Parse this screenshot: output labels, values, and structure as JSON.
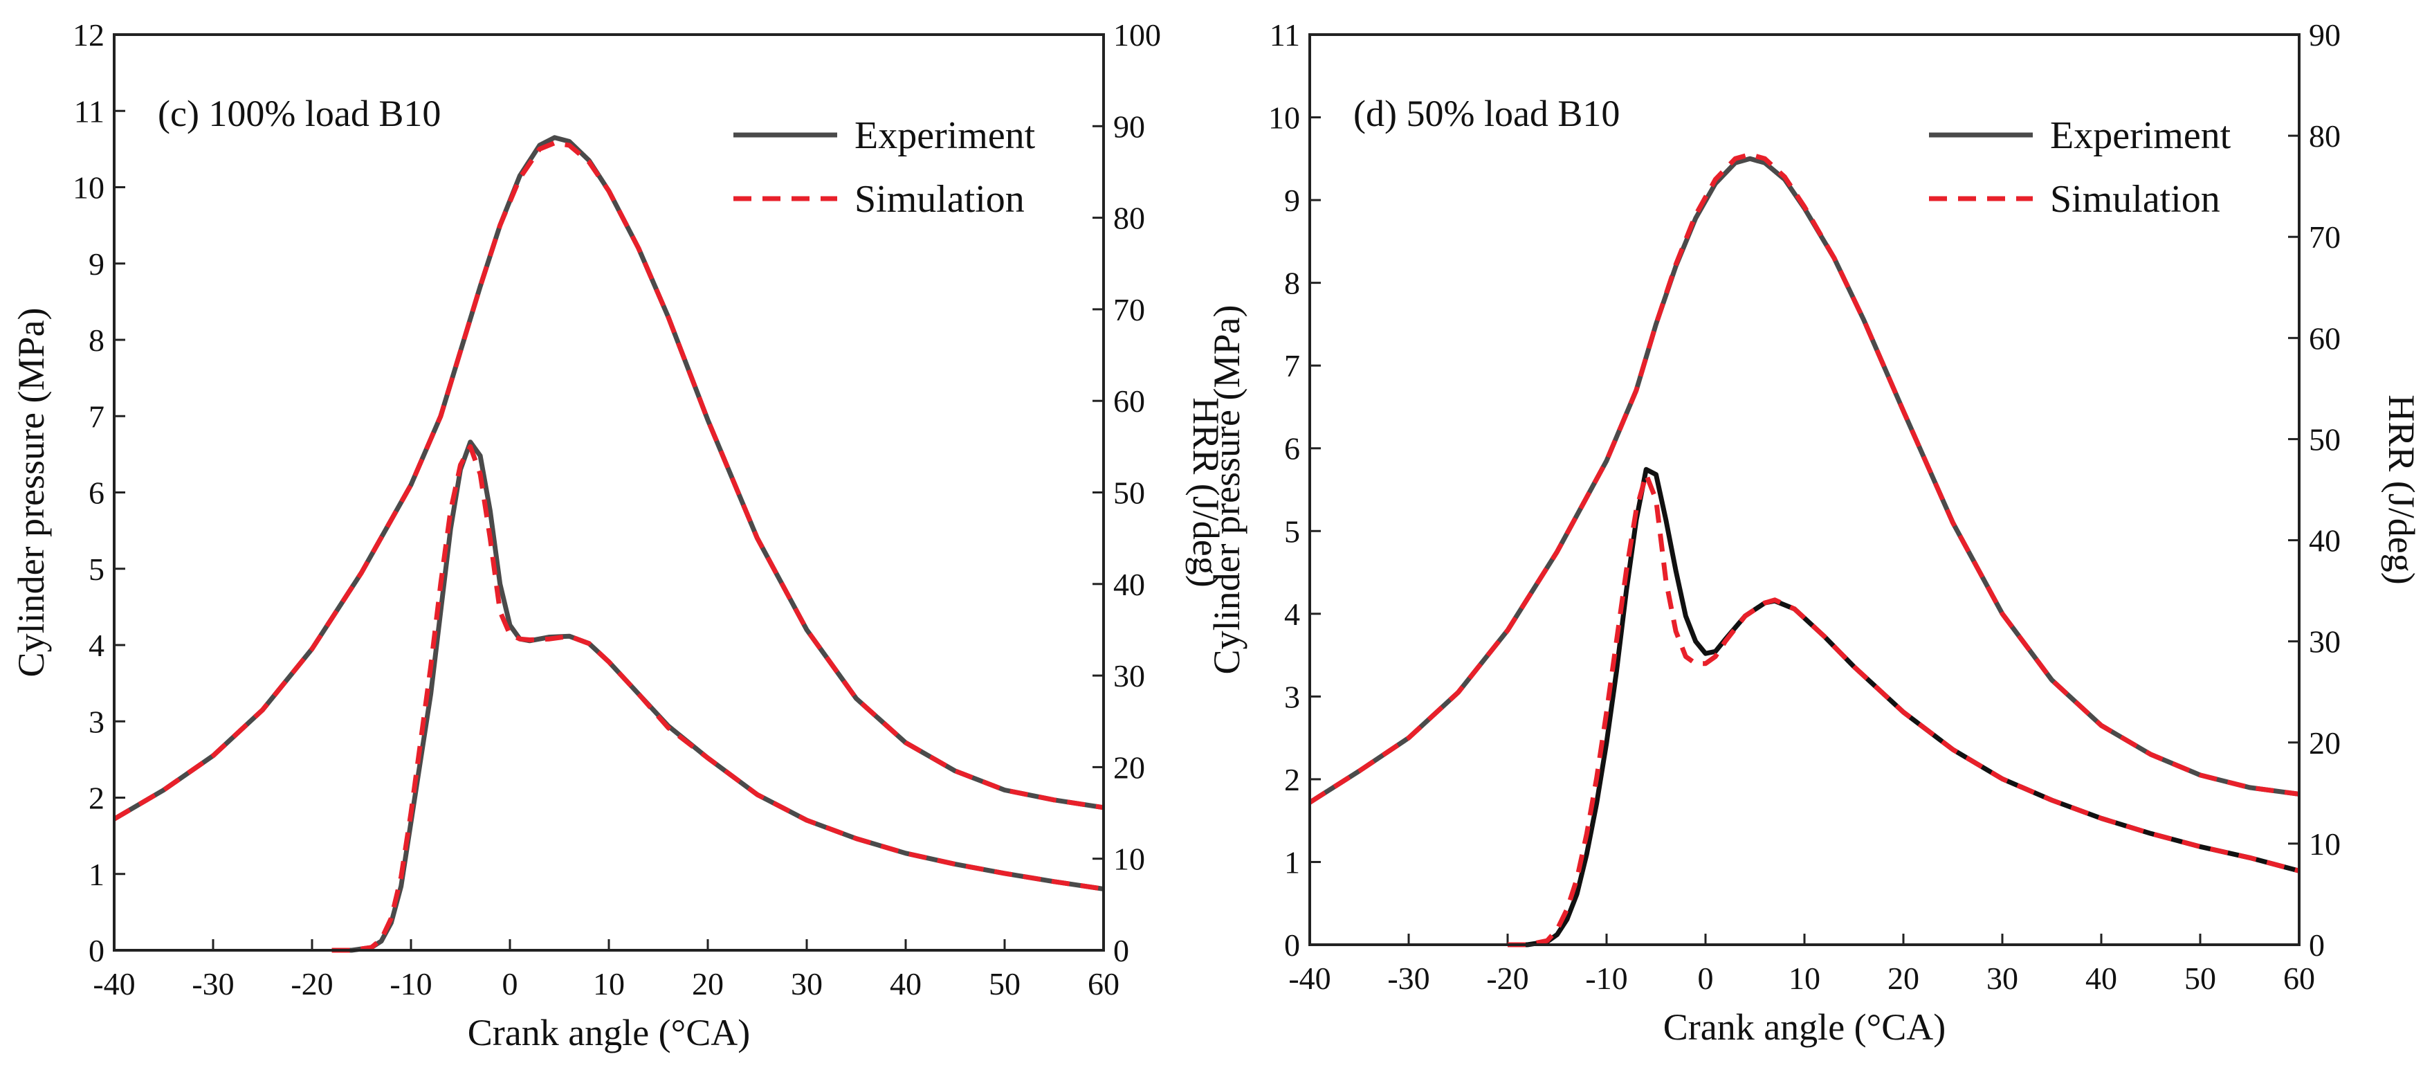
{
  "chart_data": [
    {
      "type": "line",
      "panel_label": "(c) 100% load B10",
      "xlabel": "Crank angle (°CA)",
      "ylabel": "Cylinder pressure (MPa)",
      "y2label": "HRR (J/deg)",
      "xlim": [
        -40,
        60
      ],
      "ylim": [
        0,
        12
      ],
      "y2lim": [
        0,
        100
      ],
      "xticks": [
        -40,
        -30,
        -20,
        -10,
        0,
        10,
        20,
        30,
        40,
        50,
        60
      ],
      "yticks": [
        0,
        1,
        2,
        3,
        4,
        5,
        6,
        7,
        8,
        9,
        10,
        11,
        12
      ],
      "y2ticks": [
        0,
        10,
        20,
        30,
        40,
        50,
        60,
        70,
        80,
        90,
        100
      ],
      "legend": [
        {
          "label": "Experiment",
          "color": "#4a4a4a",
          "style": "solid"
        },
        {
          "label": "Simulation",
          "color": "#e8202a",
          "style": "dashed"
        }
      ],
      "series": [
        {
          "name": "Experiment",
          "quantity": "Cylinder pressure",
          "axis": "left",
          "color": "#4a4a4a",
          "x": [
            -40,
            -35,
            -30,
            -25,
            -20,
            -15,
            -10,
            -7,
            -5,
            -3,
            -1,
            1,
            3,
            4.5,
            6,
            8,
            10,
            13,
            16,
            20,
            25,
            30,
            35,
            40,
            45,
            50,
            55,
            60
          ],
          "y": [
            1.72,
            2.1,
            2.55,
            3.15,
            3.95,
            4.95,
            6.1,
            7.0,
            7.85,
            8.7,
            9.5,
            10.15,
            10.55,
            10.65,
            10.6,
            10.35,
            9.95,
            9.2,
            8.3,
            6.95,
            5.4,
            4.2,
            3.3,
            2.72,
            2.35,
            2.1,
            1.97,
            1.87
          ]
        },
        {
          "name": "Simulation",
          "quantity": "Cylinder pressure",
          "axis": "left",
          "color": "#e8202a",
          "x": [
            -40,
            -35,
            -30,
            -25,
            -20,
            -15,
            -10,
            -7,
            -5,
            -3,
            -1,
            1,
            3,
            4.5,
            6,
            8,
            10,
            13,
            16,
            20,
            25,
            30,
            35,
            40,
            45,
            50,
            55,
            60
          ],
          "y": [
            1.72,
            2.1,
            2.55,
            3.15,
            3.95,
            4.95,
            6.1,
            7.0,
            7.85,
            8.7,
            9.5,
            10.12,
            10.5,
            10.58,
            10.55,
            10.33,
            9.95,
            9.2,
            8.3,
            6.95,
            5.4,
            4.2,
            3.3,
            2.72,
            2.35,
            2.1,
            1.97,
            1.87
          ]
        },
        {
          "name": "Experiment",
          "quantity": "HRR",
          "axis": "right",
          "color": "#4a4a4a",
          "x": [
            -18,
            -16,
            -14,
            -13,
            -12,
            -11,
            -10,
            -9,
            -8,
            -7,
            -6,
            -5,
            -4,
            -3,
            -2,
            -1,
            0,
            1,
            2,
            4,
            6,
            8,
            10,
            13,
            16,
            20,
            25,
            30,
            35,
            40,
            45,
            50,
            55,
            60
          ],
          "y": [
            0,
            0,
            0.3,
            1,
            3,
            7,
            14,
            21,
            28,
            37,
            46,
            52.5,
            55.5,
            54,
            48,
            40,
            35.5,
            34,
            33.8,
            34.2,
            34.3,
            33.5,
            31.5,
            28,
            24.5,
            21,
            17,
            14.2,
            12.2,
            10.6,
            9.4,
            8.4,
            7.5,
            6.7
          ]
        },
        {
          "name": "Simulation",
          "quantity": "HRR",
          "axis": "right",
          "color": "#e8202a",
          "x": [
            -18,
            -16,
            -14,
            -13,
            -12,
            -11,
            -10,
            -9,
            -8,
            -7,
            -6,
            -5,
            -4,
            -3,
            -2,
            -1,
            0,
            1,
            2,
            4,
            6,
            8,
            10,
            13,
            16,
            20,
            25,
            30,
            35,
            40,
            45,
            50,
            55,
            60
          ],
          "y": [
            0,
            0,
            0.3,
            1.2,
            3.5,
            8,
            15,
            23,
            31,
            40,
            48,
            53,
            55,
            52,
            45,
            37,
            34.5,
            34,
            33.9,
            34,
            34.3,
            33.5,
            31.5,
            28,
            24.3,
            21,
            17,
            14.2,
            12.2,
            10.6,
            9.4,
            8.4,
            7.5,
            6.7
          ]
        }
      ]
    },
    {
      "type": "line",
      "panel_label": "(d) 50% load B10",
      "xlabel": "Crank angle (°CA)",
      "ylabel": "Cylinder pressure (MPa)",
      "y2label": "HRR (J/deg)",
      "xlim": [
        -40,
        60
      ],
      "ylim": [
        0,
        11
      ],
      "y2lim": [
        0,
        90
      ],
      "xticks": [
        -40,
        -30,
        -20,
        -10,
        0,
        10,
        20,
        30,
        40,
        50,
        60
      ],
      "yticks": [
        0,
        1,
        2,
        3,
        4,
        5,
        6,
        7,
        8,
        9,
        10,
        11
      ],
      "y2ticks": [
        0,
        10,
        20,
        30,
        40,
        50,
        60,
        70,
        80,
        90
      ],
      "legend": [
        {
          "label": "Experiment",
          "color": "#4a4a4a",
          "style": "solid"
        },
        {
          "label": "Simulation",
          "color": "#e8202a",
          "style": "dashed"
        }
      ],
      "series": [
        {
          "name": "Experiment",
          "quantity": "Cylinder pressure",
          "axis": "left",
          "color": "#4a4a4a",
          "x": [
            -40,
            -35,
            -30,
            -25,
            -20,
            -15,
            -10,
            -7,
            -5,
            -3,
            -1,
            1,
            3,
            4.5,
            6,
            8,
            10,
            13,
            16,
            20,
            25,
            30,
            35,
            40,
            45,
            50,
            55,
            60
          ],
          "y": [
            1.72,
            2.1,
            2.5,
            3.05,
            3.8,
            4.75,
            5.85,
            6.7,
            7.5,
            8.2,
            8.78,
            9.2,
            9.45,
            9.5,
            9.45,
            9.25,
            8.9,
            8.3,
            7.55,
            6.45,
            5.1,
            4.0,
            3.2,
            2.65,
            2.3,
            2.05,
            1.9,
            1.82
          ]
        },
        {
          "name": "Simulation",
          "quantity": "Cylinder pressure",
          "axis": "left",
          "color": "#e8202a",
          "x": [
            -40,
            -35,
            -30,
            -25,
            -20,
            -15,
            -10,
            -7,
            -5,
            -3,
            -1,
            1,
            3,
            4.5,
            6,
            8,
            10,
            13,
            16,
            20,
            25,
            30,
            35,
            40,
            45,
            50,
            55,
            60
          ],
          "y": [
            1.72,
            2.1,
            2.5,
            3.05,
            3.8,
            4.75,
            5.85,
            6.7,
            7.5,
            8.22,
            8.82,
            9.25,
            9.5,
            9.55,
            9.5,
            9.28,
            8.92,
            8.3,
            7.55,
            6.45,
            5.1,
            4.0,
            3.2,
            2.65,
            2.3,
            2.05,
            1.9,
            1.82
          ]
        },
        {
          "name": "Experiment",
          "quantity": "HRR",
          "axis": "right",
          "color": "#111111",
          "x": [
            -20,
            -18,
            -16,
            -15,
            -14,
            -13,
            -12,
            -11,
            -10,
            -9,
            -8,
            -7,
            -6,
            -5,
            -4,
            -3,
            -2,
            -1,
            0,
            1,
            2,
            4,
            6,
            7,
            9,
            12,
            15,
            20,
            25,
            30,
            35,
            40,
            45,
            50,
            55,
            60
          ],
          "y": [
            0,
            0,
            0.3,
            1,
            2.5,
            5,
            9,
            14,
            20,
            27,
            35,
            42,
            47,
            46.5,
            42,
            37,
            32.5,
            30,
            28.8,
            29,
            30.2,
            32.5,
            33.8,
            34,
            33.2,
            30.5,
            27.5,
            23,
            19.3,
            16.4,
            14.3,
            12.5,
            11,
            9.7,
            8.6,
            7.3
          ]
        },
        {
          "name": "Simulation",
          "quantity": "HRR",
          "axis": "right",
          "color": "#e8202a",
          "x": [
            -20,
            -18,
            -16,
            -15,
            -14,
            -13,
            -12,
            -11,
            -10,
            -9,
            -8,
            -7,
            -6,
            -5,
            -4,
            -3,
            -2,
            -1,
            0,
            1,
            2,
            4,
            6,
            7,
            9,
            12,
            15,
            20,
            25,
            30,
            35,
            40,
            45,
            50,
            55,
            60
          ],
          "y": [
            0,
            0,
            0.4,
            1.5,
            3.5,
            6.5,
            11,
            16.5,
            23,
            30,
            37,
            43,
            46.5,
            44,
            36,
            31,
            28.5,
            27.8,
            27.8,
            28.5,
            30,
            32.5,
            33.8,
            34.1,
            33.2,
            30.5,
            27.5,
            23,
            19.3,
            16.4,
            14.3,
            12.5,
            11,
            9.7,
            8.6,
            7.3
          ]
        }
      ]
    }
  ]
}
